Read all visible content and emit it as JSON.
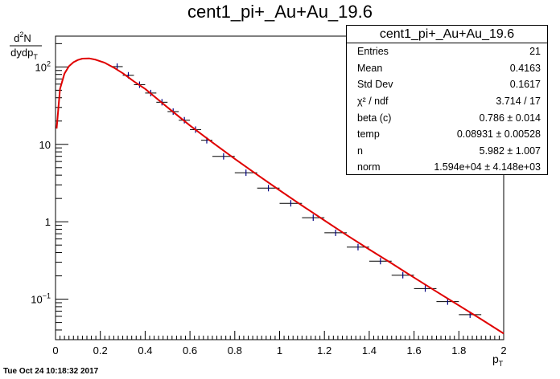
{
  "canvas": {
    "date_stamp": "Tue Oct 24 10:18:32 2017"
  },
  "stats_box": {
    "title": "cent1_pi+_Au+Au_19.6",
    "rows": [
      {
        "label": "Entries",
        "value": "21"
      },
      {
        "label": "Mean",
        "value": "0.4163"
      },
      {
        "label": "Std Dev",
        "value": "0.1617"
      },
      {
        "label": "χ² / ndf",
        "value": "3.714 / 17"
      },
      {
        "label": "beta (c)",
        "value": "0.786 ± 0.014"
      },
      {
        "label": "temp",
        "value": "0.08931 ± 0.00528"
      },
      {
        "label": "n",
        "value": "5.982 ± 1.007"
      },
      {
        "label": "norm",
        "value": "1.594e+04 ± 4.148e+03"
      }
    ]
  },
  "chart_data": {
    "type": "scatter",
    "title": "cent1_pi+_Au+Au_19.6",
    "xlabel": {
      "main": "p",
      "sub": "T"
    },
    "ylabel": {
      "num_main": "d",
      "num_sup": "2",
      "num_tail": "N",
      "den_main": "dydp",
      "den_sub": "T"
    },
    "xlim": [
      0,
      2
    ],
    "ylim": [
      0.03,
      250
    ],
    "yscale": "log",
    "grid": false,
    "x_ticks": [
      0,
      0.2,
      0.4,
      0.6,
      0.8,
      1,
      1.2,
      1.4,
      1.6,
      1.8,
      2
    ],
    "x_tick_labels": [
      "0",
      "0.2",
      "0.4",
      "0.6",
      "0.8",
      "1",
      "1.2",
      "1.4",
      "1.6",
      "1.8",
      "2"
    ],
    "y_major_ticks": [
      0.1,
      1,
      10,
      100
    ],
    "y_tick_labels": [
      {
        "main": "10",
        "sup": "−1"
      },
      {
        "main": "1",
        "sup": ""
      },
      {
        "main": "10",
        "sup": ""
      },
      {
        "main": "10",
        "sup": "2"
      }
    ],
    "series": [
      {
        "kind": "points",
        "marker_color": "#000080",
        "x": [
          0.275,
          0.325,
          0.375,
          0.425,
          0.475,
          0.525,
          0.575,
          0.625,
          0.675,
          0.75,
          0.85,
          0.95,
          1.05,
          1.15,
          1.25,
          1.35,
          1.45,
          1.55,
          1.65,
          1.75,
          1.85
        ],
        "y": [
          101,
          78,
          59,
          46,
          35,
          26.5,
          20.5,
          15.5,
          11.3,
          7.0,
          4.3,
          2.72,
          1.73,
          1.13,
          0.72,
          0.47,
          0.31,
          0.204,
          0.137,
          0.093,
          0.063
        ],
        "xerr": [
          0.025,
          0.025,
          0.025,
          0.025,
          0.025,
          0.025,
          0.025,
          0.025,
          0.025,
          0.05,
          0.05,
          0.05,
          0.05,
          0.05,
          0.05,
          0.05,
          0.05,
          0.05,
          0.05,
          0.05,
          0.05
        ]
      },
      {
        "kind": "fit_line",
        "line_color": "#e00000",
        "x": [
          0.005,
          0.02,
          0.04,
          0.06,
          0.08,
          0.1,
          0.12,
          0.15,
          0.18,
          0.22,
          0.26,
          0.3,
          0.35,
          0.4,
          0.5,
          0.6,
          0.7,
          0.8,
          0.9,
          1.0,
          1.1,
          1.2,
          1.3,
          1.4,
          1.5,
          1.6,
          1.7,
          1.8,
          1.9,
          2.0
        ],
        "y": [
          16,
          52,
          82,
          102,
          115,
          123,
          128,
          129,
          124,
          113,
          98,
          83,
          65,
          52,
          30,
          17.5,
          10.6,
          6.5,
          4.05,
          2.55,
          1.62,
          1.04,
          0.67,
          0.44,
          0.29,
          0.19,
          0.125,
          0.083,
          0.055,
          0.036
        ]
      }
    ]
  }
}
